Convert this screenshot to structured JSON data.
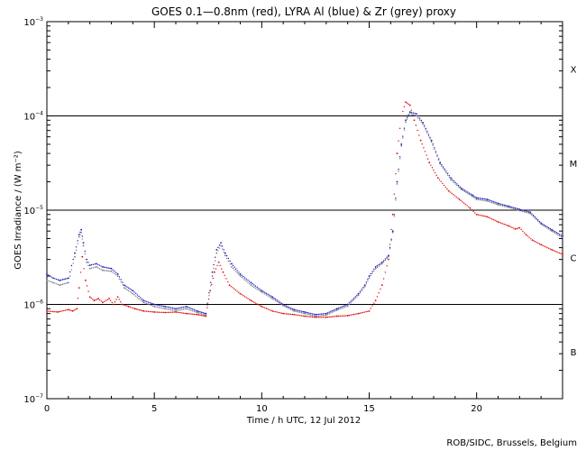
{
  "chart_data": {
    "type": "scatter",
    "title": "GOES 0.1—0.8nm (red), LYRA Al (blue) & Zr (grey) proxy",
    "xlabel": "Time / h UTC, 12 Jul 2012",
    "ylabel": "GOES Irradiance / (W m⁻²)",
    "xlim": [
      0,
      24
    ],
    "ylim": [
      1e-07,
      0.001
    ],
    "yscale": "log",
    "x_ticks": [
      {
        "value": 0,
        "label": "0"
      },
      {
        "value": 5,
        "label": "5"
      },
      {
        "value": 10,
        "label": "10"
      },
      {
        "value": 15,
        "label": "15"
      },
      {
        "value": 20,
        "label": "20"
      }
    ],
    "y_ticks": [
      {
        "value": 1e-07,
        "base": "10",
        "exp": "−7"
      },
      {
        "value": 1e-06,
        "base": "10",
        "exp": "−6"
      },
      {
        "value": 1e-05,
        "base": "10",
        "exp": "−5"
      },
      {
        "value": 0.0001,
        "base": "10",
        "exp": "−4"
      },
      {
        "value": 0.001,
        "base": "10",
        "exp": "−3"
      }
    ],
    "class_thresholds": [
      1e-06,
      1e-05,
      0.0001
    ],
    "flare_classes": [
      {
        "label": "X",
        "value": 0.000316
      },
      {
        "label": "M",
        "value": 3.16e-05
      },
      {
        "label": "C",
        "value": 3.16e-06
      },
      {
        "label": "B",
        "value": 3.16e-07
      }
    ],
    "series": [
      {
        "name": "GOES 0.1-0.8nm",
        "color": "#e00000",
        "x": [
          0.0,
          0.5,
          1.0,
          1.2,
          1.4,
          1.5,
          1.65,
          1.8,
          2.0,
          2.2,
          2.4,
          2.6,
          2.9,
          3.1,
          3.3,
          3.5,
          3.8,
          4.1,
          4.5,
          5.0,
          5.5,
          6.0,
          6.5,
          7.0,
          7.4,
          7.6,
          7.8,
          8.0,
          8.2,
          8.5,
          9.0,
          9.5,
          10.0,
          10.5,
          11.0,
          11.5,
          12.0,
          12.5,
          13.0,
          13.5,
          14.0,
          14.5,
          15.0,
          15.3,
          15.6,
          15.9,
          16.1,
          16.3,
          16.5,
          16.7,
          16.9,
          17.1,
          17.4,
          17.8,
          18.2,
          18.7,
          19.2,
          19.7,
          20.0,
          20.5,
          21.0,
          21.5,
          21.8,
          22.0,
          22.3,
          22.6,
          23.0,
          23.5,
          24.0
        ],
        "y": [
          8.5e-07,
          8.3e-07,
          8.8e-07,
          8.5e-07,
          9e-07,
          1.5e-06,
          3.2e-06,
          1.8e-06,
          1.2e-06,
          1.1e-06,
          1.15e-06,
          1.05e-06,
          1.15e-06,
          1e-06,
          1.2e-06,
          1e-06,
          9.5e-07,
          9e-07,
          8.5e-07,
          8.3e-07,
          8.2e-07,
          8.3e-07,
          8e-07,
          7.8e-07,
          7.5e-07,
          1.4e-06,
          2.2e-06,
          2.8e-06,
          2.2e-06,
          1.6e-06,
          1.3e-06,
          1.1e-06,
          9.5e-07,
          8.5e-07,
          8e-07,
          7.8e-07,
          7.5e-07,
          7.3e-07,
          7.3e-07,
          7.5e-07,
          7.6e-07,
          8e-07,
          8.5e-07,
          1.1e-06,
          1.6e-06,
          3e-06,
          9e-06,
          4e-05,
          0.0001,
          0.00014,
          0.00013,
          9e-05,
          5.5e-05,
          3.2e-05,
          2.2e-05,
          1.6e-05,
          1.3e-05,
          1.05e-05,
          9e-06,
          8.5e-06,
          7.5e-06,
          6.8e-06,
          6.3e-06,
          6.5e-06,
          5.5e-06,
          4.8e-06,
          4.3e-06,
          3.8e-06,
          3.4e-06
        ]
      },
      {
        "name": "LYRA Al proxy",
        "color": "#1010c8",
        "x": [
          0.0,
          0.3,
          0.6,
          1.0,
          1.3,
          1.5,
          1.6,
          1.7,
          1.85,
          2.0,
          2.3,
          2.6,
          3.0,
          3.3,
          3.6,
          4.0,
          4.5,
          5.0,
          5.5,
          6.0,
          6.5,
          7.0,
          7.4,
          7.7,
          7.9,
          8.1,
          8.3,
          8.6,
          9.0,
          9.5,
          10.0,
          10.5,
          11.0,
          11.5,
          12.0,
          12.5,
          13.0,
          13.5,
          14.0,
          14.5,
          14.8,
          15.0,
          15.3,
          15.6,
          15.9,
          16.1,
          16.3,
          16.5,
          16.7,
          16.9,
          17.2,
          17.5,
          17.9,
          18.3,
          18.8,
          19.3,
          19.8,
          20.0,
          20.5,
          21.0,
          21.5,
          22.0,
          22.5,
          23.0,
          23.5,
          24.0
        ],
        "y": [
          2.1e-06,
          1.9e-06,
          1.8e-06,
          1.9e-06,
          3.5e-06,
          5.5e-06,
          6.2e-06,
          4.5e-06,
          3e-06,
          2.6e-06,
          2.7e-06,
          2.5e-06,
          2.4e-06,
          2.1e-06,
          1.6e-06,
          1.4e-06,
          1.1e-06,
          1e-06,
          9.5e-07,
          9e-07,
          9.5e-07,
          8.5e-07,
          8e-07,
          2.2e-06,
          3.8e-06,
          4.5e-06,
          3.5e-06,
          2.7e-06,
          2.1e-06,
          1.7e-06,
          1.4e-06,
          1.2e-06,
          1e-06,
          8.8e-07,
          8.3e-07,
          7.8e-07,
          8e-07,
          9e-07,
          1e-06,
          1.3e-06,
          1.6e-06,
          2e-06,
          2.5e-06,
          2.8e-06,
          3.3e-06,
          6e-06,
          2e-05,
          5e-05,
          9e-05,
          0.00011,
          0.000105,
          8.5e-05,
          5.5e-05,
          3.2e-05,
          2.2e-05,
          1.7e-05,
          1.45e-05,
          1.35e-05,
          1.3e-05,
          1.18e-05,
          1.1e-05,
          1.02e-05,
          9.5e-06,
          7.3e-06,
          6.2e-06,
          5.3e-06
        ]
      },
      {
        "name": "LYRA Zr proxy",
        "color": "#7a7a7a",
        "x": [
          0.0,
          0.3,
          0.6,
          1.0,
          1.3,
          1.5,
          1.6,
          1.7,
          1.85,
          2.0,
          2.3,
          2.6,
          3.0,
          3.3,
          3.6,
          4.0,
          4.5,
          5.0,
          5.5,
          6.0,
          6.5,
          7.0,
          7.4,
          7.7,
          7.9,
          8.1,
          8.3,
          8.6,
          9.0,
          9.5,
          10.0,
          10.5,
          11.0,
          11.5,
          12.0,
          12.5,
          13.0,
          13.5,
          14.0,
          14.5,
          14.8,
          15.0,
          15.3,
          15.6,
          15.9,
          16.1,
          16.3,
          16.5,
          16.7,
          16.9,
          17.2,
          17.5,
          17.9,
          18.3,
          18.8,
          19.3,
          19.8,
          20.0,
          20.5,
          21.0,
          21.5,
          22.0,
          22.5,
          23.0,
          23.5,
          24.0
        ],
        "y": [
          1.8e-06,
          1.7e-06,
          1.6e-06,
          1.7e-06,
          3.2e-06,
          5.2e-06,
          5.8e-06,
          4.2e-06,
          2.8e-06,
          2.4e-06,
          2.5e-06,
          2.3e-06,
          2.25e-06,
          2e-06,
          1.5e-06,
          1.3e-06,
          1.05e-06,
          9.5e-07,
          9e-07,
          8.6e-07,
          9e-07,
          8.2e-07,
          7.7e-07,
          2e-06,
          3.5e-06,
          4.2e-06,
          3.3e-06,
          2.5e-06,
          2e-06,
          1.6e-06,
          1.35e-06,
          1.15e-06,
          9.7e-07,
          8.5e-07,
          8e-07,
          7.5e-07,
          7.7e-07,
          8.7e-07,
          9.6e-07,
          1.25e-06,
          1.55e-06,
          1.9e-06,
          2.4e-06,
          2.7e-06,
          3.2e-06,
          5.8e-06,
          1.9e-05,
          4.8e-05,
          8.6e-05,
          0.000106,
          0.0001,
          8.2e-05,
          5.3e-05,
          3.1e-05,
          2.1e-05,
          1.65e-05,
          1.4e-05,
          1.3e-05,
          1.25e-05,
          1.14e-05,
          1.07e-05,
          9.9e-06,
          9.2e-06,
          7.1e-06,
          6e-06,
          5.1e-06
        ]
      }
    ]
  },
  "footer": {
    "credit": "ROB/SIDC, Brussels, Belgium"
  }
}
